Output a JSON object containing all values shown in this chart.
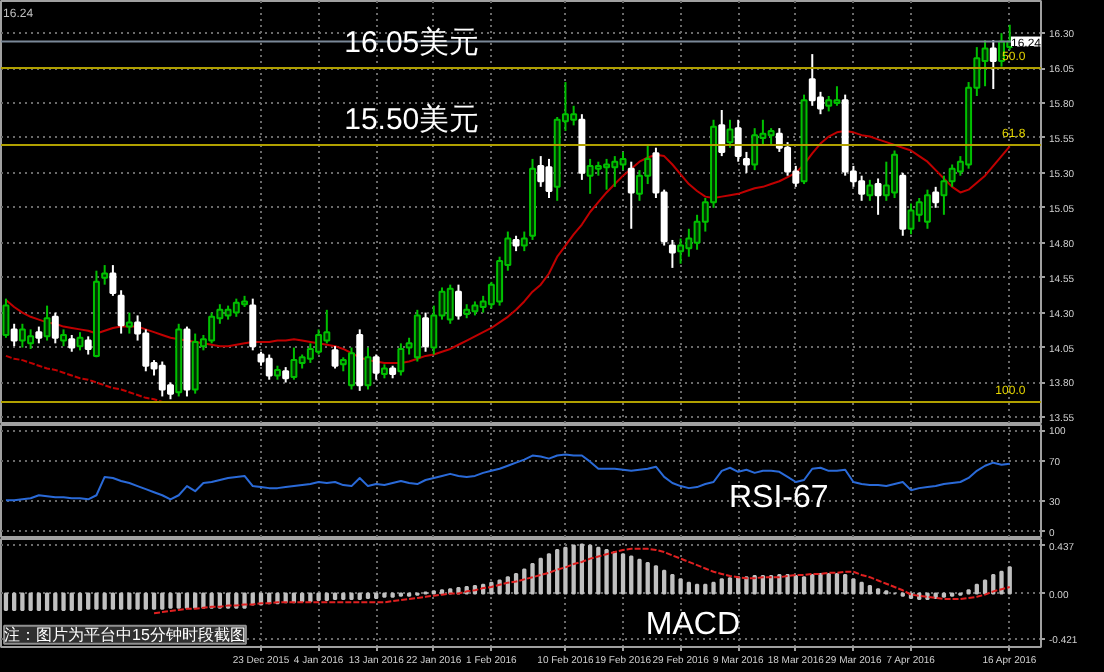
{
  "chart_data": [
    {
      "type": "candlestick",
      "ohlc": [
        [
          14.14,
          14.4,
          14.12,
          14.35
        ],
        [
          14.18,
          14.22,
          14.06,
          14.1
        ],
        [
          14.1,
          14.22,
          14.05,
          14.18
        ],
        [
          14.08,
          14.18,
          14.04,
          14.13
        ],
        [
          14.16,
          14.2,
          14.08,
          14.12
        ],
        [
          14.13,
          14.35,
          14.1,
          14.26
        ],
        [
          14.27,
          14.3,
          14.08,
          14.12
        ],
        [
          14.1,
          14.18,
          14.06,
          14.14
        ],
        [
          14.11,
          14.14,
          14.02,
          14.05
        ],
        [
          14.06,
          14.16,
          14.03,
          14.12
        ],
        [
          14.1,
          14.13,
          14.0,
          14.04
        ],
        [
          13.99,
          14.6,
          13.98,
          14.52
        ],
        [
          14.55,
          14.64,
          14.5,
          14.58
        ],
        [
          14.58,
          14.64,
          14.42,
          14.44
        ],
        [
          14.42,
          14.46,
          14.15,
          14.21
        ],
        [
          14.2,
          14.3,
          14.15,
          14.23
        ],
        [
          14.23,
          14.28,
          14.1,
          14.15
        ],
        [
          14.15,
          14.18,
          13.88,
          13.92
        ],
        [
          13.94,
          13.96,
          13.85,
          13.9
        ],
        [
          13.92,
          13.95,
          13.7,
          13.75
        ],
        [
          13.78,
          13.8,
          13.68,
          13.72
        ],
        [
          13.73,
          14.22,
          13.7,
          14.18
        ],
        [
          14.18,
          14.2,
          13.7,
          13.75
        ],
        [
          13.75,
          14.15,
          13.72,
          14.09
        ],
        [
          14.06,
          14.14,
          14.03,
          14.11
        ],
        [
          14.1,
          14.3,
          14.08,
          14.27
        ],
        [
          14.26,
          14.36,
          14.22,
          14.32
        ],
        [
          14.28,
          14.35,
          14.25,
          14.32
        ],
        [
          14.3,
          14.4,
          14.27,
          14.37
        ],
        [
          14.36,
          14.42,
          14.34,
          14.38
        ],
        [
          14.35,
          14.4,
          14.03,
          14.06
        ],
        [
          14.0,
          14.02,
          13.92,
          13.95
        ],
        [
          13.97,
          14.0,
          13.82,
          13.85
        ],
        [
          13.85,
          13.92,
          13.82,
          13.89
        ],
        [
          13.88,
          13.91,
          13.8,
          13.83
        ],
        [
          13.84,
          14.05,
          13.82,
          13.96
        ],
        [
          13.94,
          14.0,
          13.9,
          13.98
        ],
        [
          13.97,
          14.08,
          13.94,
          14.04
        ],
        [
          14.02,
          14.18,
          14.0,
          14.14
        ],
        [
          14.1,
          14.32,
          14.08,
          14.16
        ],
        [
          14.03,
          14.06,
          13.9,
          13.92
        ],
        [
          13.93,
          13.98,
          13.88,
          13.96
        ],
        [
          13.78,
          14.05,
          13.75,
          14.01
        ],
        [
          14.14,
          14.18,
          13.74,
          13.78
        ],
        [
          13.78,
          14.05,
          13.75,
          13.98
        ],
        [
          13.98,
          14.0,
          13.82,
          13.87
        ],
        [
          13.86,
          13.93,
          13.83,
          13.9
        ],
        [
          13.9,
          13.92,
          13.83,
          13.86
        ],
        [
          13.88,
          14.08,
          13.85,
          14.04
        ],
        [
          14.05,
          14.12,
          14.0,
          14.08
        ],
        [
          13.98,
          14.32,
          13.95,
          14.28
        ],
        [
          14.26,
          14.3,
          14.02,
          14.06
        ],
        [
          14.05,
          14.35,
          14.0,
          14.28
        ],
        [
          14.28,
          14.48,
          14.25,
          14.45
        ],
        [
          14.25,
          14.5,
          14.22,
          14.47
        ],
        [
          14.45,
          14.5,
          14.25,
          14.28
        ],
        [
          14.29,
          14.36,
          14.26,
          14.32
        ],
        [
          14.31,
          14.38,
          14.28,
          14.35
        ],
        [
          14.34,
          14.42,
          14.3,
          14.38
        ],
        [
          14.36,
          14.52,
          14.33,
          14.5
        ],
        [
          14.38,
          14.7,
          14.35,
          14.67
        ],
        [
          14.64,
          14.88,
          14.6,
          14.83
        ],
        [
          14.82,
          14.85,
          14.74,
          14.78
        ],
        [
          14.78,
          14.88,
          14.74,
          14.83
        ],
        [
          14.85,
          15.4,
          14.82,
          15.33
        ],
        [
          15.35,
          15.42,
          15.2,
          15.24
        ],
        [
          15.34,
          15.4,
          15.12,
          15.17
        ],
        [
          15.2,
          15.7,
          15.1,
          15.68
        ],
        [
          15.67,
          15.95,
          15.6,
          15.72
        ],
        [
          15.68,
          15.78,
          15.64,
          15.72
        ],
        [
          15.68,
          15.72,
          15.25,
          15.3
        ],
        [
          15.28,
          15.4,
          15.15,
          15.35
        ],
        [
          15.33,
          15.38,
          15.28,
          15.35
        ],
        [
          15.34,
          15.4,
          15.18,
          15.36
        ],
        [
          15.34,
          15.42,
          15.2,
          15.38
        ],
        [
          15.36,
          15.45,
          15.32,
          15.4
        ],
        [
          15.33,
          15.38,
          14.9,
          15.16
        ],
        [
          15.15,
          15.32,
          15.1,
          15.28
        ],
        [
          15.28,
          15.5,
          15.22,
          15.4
        ],
        [
          15.44,
          15.48,
          15.12,
          15.16
        ],
        [
          15.16,
          15.18,
          14.78,
          14.81
        ],
        [
          14.78,
          14.82,
          14.62,
          14.73
        ],
        [
          14.74,
          14.83,
          14.65,
          14.78
        ],
        [
          14.76,
          14.9,
          14.7,
          14.83
        ],
        [
          14.8,
          15.0,
          14.75,
          14.95
        ],
        [
          14.95,
          15.12,
          14.88,
          15.09
        ],
        [
          15.09,
          15.68,
          15.05,
          15.63
        ],
        [
          15.64,
          15.75,
          15.42,
          15.45
        ],
        [
          15.52,
          15.68,
          15.48,
          15.61
        ],
        [
          15.62,
          15.68,
          15.38,
          15.42
        ],
        [
          15.4,
          15.45,
          15.3,
          15.36
        ],
        [
          15.36,
          15.62,
          15.32,
          15.57
        ],
        [
          15.55,
          15.68,
          15.5,
          15.58
        ],
        [
          15.57,
          15.62,
          15.5,
          15.6
        ],
        [
          15.58,
          15.62,
          15.45,
          15.48
        ],
        [
          15.48,
          15.52,
          15.28,
          15.31
        ],
        [
          15.31,
          15.35,
          15.2,
          15.23
        ],
        [
          15.24,
          15.86,
          15.22,
          15.82
        ],
        [
          15.97,
          16.15,
          15.78,
          15.82
        ],
        [
          15.84,
          15.88,
          15.72,
          15.76
        ],
        [
          15.78,
          15.85,
          15.74,
          15.82
        ],
        [
          15.8,
          15.92,
          15.78,
          15.82
        ],
        [
          15.82,
          15.86,
          15.28,
          15.31
        ],
        [
          15.31,
          15.35,
          15.2,
          15.24
        ],
        [
          15.24,
          15.28,
          15.1,
          15.15
        ],
        [
          15.14,
          15.25,
          15.1,
          15.21
        ],
        [
          15.22,
          15.26,
          15.0,
          15.14
        ],
        [
          15.14,
          15.38,
          15.1,
          15.21
        ],
        [
          15.16,
          15.46,
          15.12,
          15.43
        ],
        [
          15.28,
          15.3,
          14.85,
          14.9
        ],
        [
          14.9,
          15.08,
          14.86,
          15.03
        ],
        [
          15.0,
          15.12,
          14.95,
          15.09
        ],
        [
          14.95,
          15.18,
          14.9,
          15.14
        ],
        [
          15.16,
          15.2,
          15.05,
          15.09
        ],
        [
          15.14,
          15.28,
          15.0,
          15.24
        ],
        [
          15.24,
          15.36,
          15.2,
          15.33
        ],
        [
          15.31,
          15.42,
          15.28,
          15.38
        ],
        [
          15.36,
          15.95,
          15.33,
          15.91
        ],
        [
          15.91,
          16.2,
          15.85,
          16.12
        ],
        [
          16.1,
          16.25,
          15.92,
          16.19
        ],
        [
          16.19,
          16.25,
          15.9,
          16.1
        ],
        [
          16.1,
          16.3,
          16.06,
          16.24
        ],
        [
          16.2,
          16.36,
          16.18,
          16.24
        ]
      ],
      "series": [
        {
          "type": "line",
          "color": "#c00000",
          "values": [
            14.39,
            14.34,
            14.3,
            14.27,
            14.25,
            14.23,
            14.22,
            14.2,
            14.19,
            14.18,
            14.17,
            14.15,
            14.17,
            14.19,
            14.2,
            14.2,
            14.2,
            14.18,
            14.16,
            14.14,
            14.12,
            14.11,
            14.1,
            14.09,
            14.08,
            14.07,
            14.06,
            14.06,
            14.07,
            14.08,
            14.09,
            14.09,
            14.09,
            14.1,
            14.1,
            14.11,
            14.1,
            14.09,
            14.08,
            14.07,
            14.06,
            14.04,
            14.01,
            13.98,
            13.96,
            13.95,
            13.94,
            13.94,
            13.94,
            13.95,
            13.97,
            13.99,
            14.0,
            14.02,
            14.04,
            14.07,
            14.1,
            14.13,
            14.16,
            14.19,
            14.23,
            14.27,
            14.32,
            14.38,
            14.45,
            14.5,
            14.58,
            14.7,
            14.78,
            14.86,
            14.93,
            15.02,
            15.09,
            15.16,
            15.22,
            15.28,
            15.33,
            15.38,
            15.41,
            15.43,
            15.42,
            15.36,
            15.29,
            15.22,
            15.17,
            15.13,
            15.12,
            15.13,
            15.14,
            15.15,
            15.17,
            15.19,
            15.2,
            15.22,
            15.24,
            15.27,
            15.3,
            15.36,
            15.44,
            15.51,
            15.56,
            15.59,
            15.6,
            15.59,
            15.57,
            15.56,
            15.54,
            15.52,
            15.5,
            15.48,
            15.46,
            15.42,
            15.38,
            15.32,
            15.26,
            15.2,
            15.16,
            15.18,
            15.23,
            15.28,
            15.35,
            15.42,
            15.49
          ]
        },
        {
          "type": "line",
          "color": "#c00000",
          "line_style": "dashed",
          "values": [
            13.99,
            13.97,
            13.96,
            13.94,
            13.92,
            13.9,
            13.89,
            13.87,
            13.85,
            13.83,
            13.82,
            13.8,
            13.78,
            13.76,
            13.75,
            13.73,
            13.71,
            13.69,
            13.68,
            13.66,
            null,
            null,
            null,
            null,
            null,
            null,
            null,
            null,
            null,
            null,
            null,
            null,
            null,
            null,
            null,
            null,
            null,
            null,
            null,
            null,
            null,
            null,
            null,
            null,
            null,
            null,
            null,
            null,
            null,
            null,
            null,
            null,
            null,
            null,
            null,
            null,
            null,
            null,
            null,
            null,
            null,
            null,
            null,
            null,
            null,
            null,
            null,
            null,
            null,
            null,
            null,
            null,
            null,
            null,
            null,
            null,
            null,
            null,
            null,
            null,
            null,
            null,
            null,
            null,
            null,
            null,
            null,
            null,
            null,
            null,
            null,
            null,
            null,
            null,
            null,
            null,
            null,
            null,
            null,
            null,
            null,
            null,
            null,
            null,
            null,
            null,
            null,
            null,
            null,
            null,
            null,
            null,
            null,
            null,
            null,
            null,
            null,
            null,
            null,
            null,
            null,
            null,
            null
          ]
        }
      ],
      "ref_lines": [
        {
          "axis": "y",
          "value": 16.05,
          "color": "#b0a000"
        },
        {
          "axis": "y",
          "value": 15.5,
          "color": "#b0a000"
        },
        {
          "axis": "y",
          "value": 13.66,
          "color": "#b0a000"
        },
        {
          "axis": "y",
          "value": 16.24,
          "label": "16.24",
          "color": "#7a8898"
        }
      ],
      "annotations": [
        {
          "text": "16.05美元",
          "y": 16.05
        },
        {
          "text": "15.50美元",
          "y": 15.5
        },
        {
          "text": "50.0",
          "y": 16.05
        },
        {
          "text": "61.8",
          "y": 15.5
        },
        {
          "text": "100.0",
          "y": 13.66
        },
        "16.24"
      ],
      "ylim": [
        13.51,
        16.53
      ],
      "yticks": [
        {
          "value": 13.55,
          "label": "13.55"
        },
        {
          "value": 13.8,
          "label": "13.80"
        },
        {
          "value": 14.05,
          "label": "14.05"
        },
        {
          "value": 14.3,
          "label": "14.30"
        },
        {
          "value": 14.55,
          "label": "14.55"
        },
        {
          "value": 14.8,
          "label": "14.80"
        },
        {
          "value": 15.05,
          "label": "15.05"
        },
        {
          "value": 15.3,
          "label": "15.30"
        },
        {
          "value": 15.55,
          "label": "15.55"
        },
        {
          "value": 15.8,
          "label": "15.80"
        },
        {
          "value": 16.05,
          "label": "16.05"
        },
        {
          "value": 16.3,
          "label": "16.30"
        }
      ],
      "grid": true,
      "tick_labels": "y"
    },
    {
      "type": "line",
      "series": [
        {
          "color": "#2a6ad8",
          "values": [
            31,
            31,
            32,
            33,
            36,
            35,
            34,
            34,
            33,
            33,
            32,
            36,
            54,
            53,
            50,
            48,
            45,
            42,
            39,
            36,
            32,
            36,
            45,
            40,
            48,
            49,
            51,
            53,
            54,
            55,
            45,
            44,
            43,
            43,
            44,
            45,
            46,
            47,
            49,
            48,
            49,
            46,
            45,
            53,
            45,
            47,
            46,
            48,
            50,
            48,
            47,
            51,
            53,
            55,
            57,
            55,
            54,
            55,
            58,
            60,
            62,
            65,
            68,
            71,
            75,
            74,
            72,
            75,
            76,
            75,
            75,
            69,
            62,
            62,
            62,
            61,
            60,
            61,
            62,
            64,
            54,
            48,
            45,
            43,
            44,
            47,
            49,
            60,
            63,
            59,
            61,
            58,
            60,
            60,
            59,
            54,
            49,
            51,
            62,
            63,
            60,
            60,
            61,
            49,
            47,
            46,
            46,
            45,
            47,
            49,
            41,
            43,
            44,
            45,
            47,
            48,
            49,
            53,
            60,
            65,
            68,
            66,
            67
          ]
        }
      ],
      "annotations": [
        "RSI-67"
      ],
      "ylim": [
        -5,
        105
      ],
      "yticks": [
        0,
        30,
        70,
        100
      ],
      "grid": true,
      "tick_labels": "y"
    },
    {
      "type": "bar",
      "categories": [
        null,
        null,
        null,
        null,
        null,
        null,
        null,
        null,
        null,
        null,
        null,
        null,
        null,
        null,
        null,
        null,
        null,
        null,
        null,
        null,
        null,
        null,
        null,
        null,
        null,
        null,
        null,
        null,
        null,
        null,
        null,
        "23 Dec 2015",
        null,
        null,
        null,
        null,
        null,
        null,
        "4 Jan 2016",
        null,
        null,
        null,
        null,
        null,
        null,
        "13 Jan 2016",
        null,
        null,
        null,
        null,
        null,
        null,
        "22 Jan 2016",
        null,
        null,
        null,
        null,
        null,
        null,
        "1 Feb 2016",
        null,
        null,
        null,
        null,
        null,
        null,
        null,
        null,
        "10 Feb 2016",
        null,
        null,
        null,
        null,
        null,
        null,
        "19 Feb 2016",
        null,
        null,
        null,
        null,
        null,
        null,
        "29 Feb 2016",
        null,
        null,
        null,
        null,
        null,
        null,
        "9 Mar 2016",
        null,
        null,
        null,
        null,
        null,
        null,
        "18 Mar 2016",
        null,
        null,
        null,
        null,
        null,
        null,
        "29 Mar 2016",
        null,
        null,
        null,
        null,
        null,
        null,
        "7 Apr 2016",
        null,
        null,
        null,
        null,
        null,
        null,
        null,
        null,
        null,
        null,
        null,
        "16 Apr 2016"
      ],
      "series": [
        {
          "color": "#c0c0c0",
          "values": [
            -0.15,
            -0.15,
            -0.15,
            -0.15,
            -0.15,
            -0.15,
            -0.15,
            -0.15,
            -0.15,
            -0.15,
            -0.14,
            -0.14,
            -0.14,
            -0.14,
            -0.14,
            -0.14,
            -0.14,
            -0.14,
            -0.14,
            -0.14,
            -0.13,
            -0.13,
            -0.13,
            -0.13,
            -0.13,
            -0.13,
            -0.13,
            -0.13,
            -0.13,
            -0.13,
            -0.1,
            -0.1,
            -0.09,
            -0.09,
            -0.08,
            -0.08,
            -0.07,
            -0.07,
            -0.06,
            -0.06,
            -0.05,
            -0.05,
            -0.05,
            -0.05,
            -0.04,
            -0.04,
            -0.03,
            -0.03,
            -0.02,
            -0.02,
            -0.01,
            0.01,
            0.02,
            0.03,
            0.04,
            0.05,
            0.06,
            0.07,
            0.08,
            0.1,
            0.12,
            0.15,
            0.18,
            0.22,
            0.27,
            0.32,
            0.36,
            0.4,
            0.42,
            0.44,
            0.45,
            0.44,
            0.42,
            0.4,
            0.38,
            0.36,
            0.34,
            0.31,
            0.28,
            0.25,
            0.21,
            0.17,
            0.13,
            0.1,
            0.08,
            0.08,
            0.1,
            0.13,
            0.14,
            0.15,
            0.15,
            0.16,
            0.16,
            0.16,
            0.17,
            0.17,
            0.16,
            0.15,
            0.17,
            0.18,
            0.18,
            0.18,
            0.17,
            0.13,
            0.1,
            0.07,
            0.04,
            0.02,
            0.0,
            -0.02,
            -0.04,
            -0.05,
            -0.05,
            -0.04,
            -0.03,
            -0.02,
            -0.01,
            0.03,
            0.08,
            0.12,
            0.17,
            0.2,
            0.24
          ]
        },
        {
          "type": "line",
          "color": "#e02020",
          "line_style": "dashed",
          "values": [
            null,
            null,
            null,
            null,
            null,
            null,
            null,
            null,
            null,
            null,
            null,
            null,
            null,
            null,
            null,
            null,
            null,
            null,
            -0.18,
            -0.17,
            -0.16,
            -0.15,
            -0.14,
            -0.14,
            -0.13,
            -0.12,
            -0.12,
            -0.11,
            -0.11,
            -0.1,
            -0.1,
            -0.09,
            -0.09,
            -0.08,
            -0.08,
            -0.08,
            -0.08,
            -0.08,
            -0.08,
            -0.08,
            -0.08,
            -0.08,
            -0.08,
            -0.08,
            -0.08,
            -0.08,
            -0.08,
            -0.07,
            -0.06,
            -0.05,
            -0.04,
            -0.03,
            -0.02,
            -0.01,
            0.0,
            0.0,
            0.02,
            0.03,
            0.05,
            0.06,
            0.08,
            0.1,
            0.11,
            0.13,
            0.15,
            0.17,
            0.19,
            0.22,
            0.24,
            0.27,
            0.29,
            0.32,
            0.34,
            0.36,
            0.38,
            0.4,
            0.41,
            0.41,
            0.41,
            0.4,
            0.38,
            0.35,
            0.32,
            0.29,
            0.26,
            0.23,
            0.2,
            0.18,
            0.16,
            0.15,
            0.14,
            0.14,
            0.15,
            0.15,
            0.15,
            0.16,
            0.17,
            0.17,
            0.18,
            0.18,
            0.19,
            0.19,
            0.2,
            0.2,
            0.17,
            0.15,
            0.12,
            0.09,
            0.06,
            0.03,
            -0.01,
            -0.02,
            -0.03,
            -0.04,
            -0.05,
            -0.05,
            -0.05,
            -0.04,
            -0.03,
            -0.01,
            0.02,
            0.04,
            0.06
          ]
        }
      ],
      "annotations": [
        "MACD",
        "注：图片为平台中15分钟时段截图"
      ],
      "ylim": [
        -0.49,
        0.5
      ],
      "yticks": [
        0.437,
        {
          "value": 0,
          "label": "0.00"
        },
        -0.421
      ],
      "grid": true
    }
  ]
}
